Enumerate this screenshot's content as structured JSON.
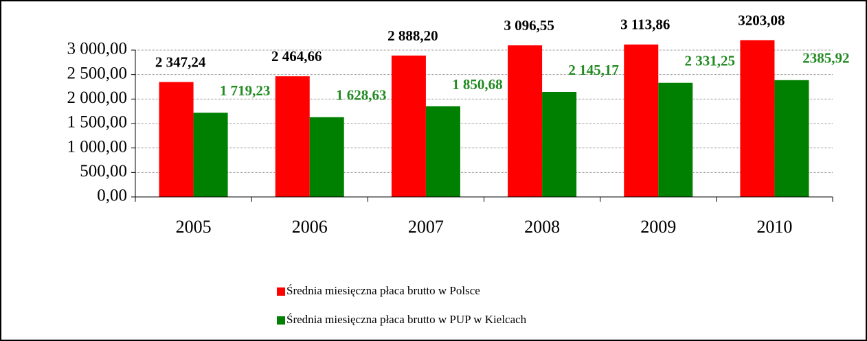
{
  "chart_data": {
    "type": "bar",
    "categories": [
      "2005",
      "2006",
      "2007",
      "2008",
      "2009",
      "2010"
    ],
    "series": [
      {
        "name": "Średnia miesięczna płaca brutto w Polsce",
        "color": "#ff0000",
        "values": [
          2347.24,
          2464.66,
          2888.2,
          3096.55,
          3113.86,
          3203.08
        ],
        "value_labels": [
          "2 347,24",
          "2 464,66",
          "2 888,20",
          "3 096,55",
          "3 113,86",
          "3203,08"
        ],
        "label_color": "#000000"
      },
      {
        "name": "Średnia miesięczna  płaca brutto w PUP w Kielcach",
        "color": "#008000",
        "values": [
          1719.23,
          1628.63,
          1850.68,
          2145.17,
          2331.25,
          2385.92
        ],
        "value_labels": [
          "1 719,23",
          "1 628,63",
          "1 850,68",
          "2 145,17",
          "2 331,25",
          "2385,92"
        ],
        "label_color": "#228b22"
      }
    ],
    "ylim": [
      0,
      3000
    ],
    "yticks": [
      {
        "value": 0,
        "label": "0,00"
      },
      {
        "value": 500,
        "label": "500,00"
      },
      {
        "value": 1000,
        "label": "1 000,00"
      },
      {
        "value": 1500,
        "label": "1 500,00"
      },
      {
        "value": 2000,
        "label": "2 000,00"
      },
      {
        "value": 2500,
        "label": "2 500,00"
      },
      {
        "value": 3000,
        "label": "3 000,00"
      }
    ],
    "grid": true
  }
}
